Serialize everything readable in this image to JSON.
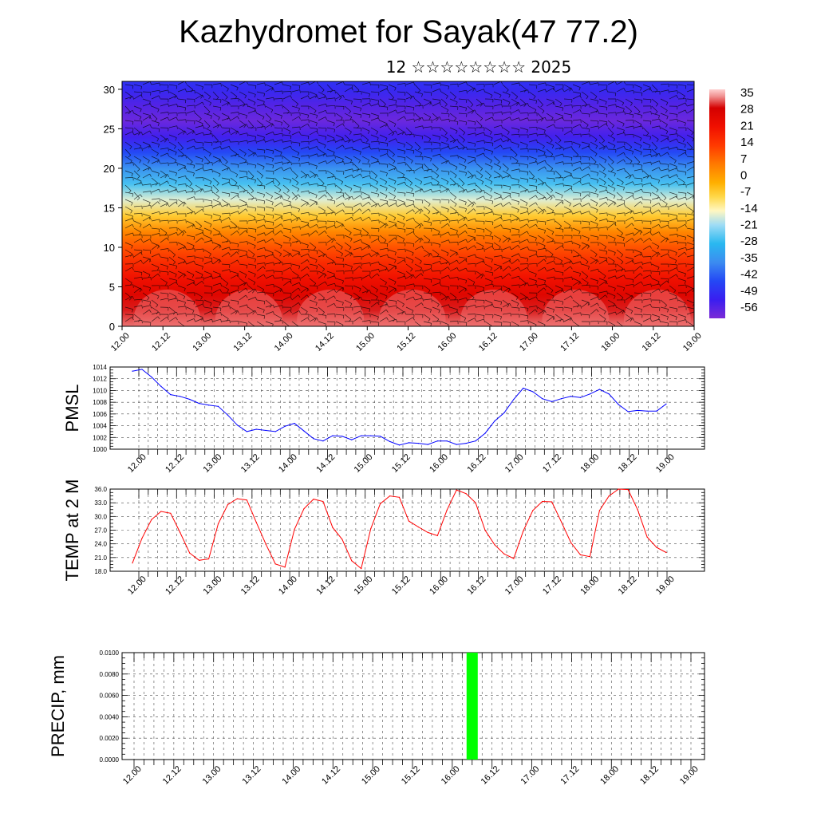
{
  "title": "Kazhydromet for Sayak(47 77.2)",
  "subtitle": "12 ☆☆☆☆☆☆☆☆ 2025",
  "colors": {
    "pmsl_line": "#0000ff",
    "temp_line": "#ff0000",
    "precip_bar": "#00ff00",
    "grid": "#000000"
  },
  "chart_data": [
    {
      "type": "heatmap",
      "name": "upper-air-temperature",
      "x_tick_labels": [
        "12.00",
        "12.12",
        "13.00",
        "13.12",
        "14.00",
        "14.12",
        "15.00",
        "15.12",
        "16.00",
        "16.12",
        "17.00",
        "17.12",
        "18.00",
        "18.12",
        "19.00"
      ],
      "y_tick_labels": [
        "0",
        "5",
        "10",
        "15",
        "20",
        "25",
        "30"
      ],
      "ylim": [
        0,
        31
      ],
      "colorbar_labels": [
        "35",
        "28",
        "21",
        "14",
        "7",
        "0",
        "-7",
        "-14",
        "-21",
        "-28",
        "-35",
        "-42",
        "-49",
        "-56"
      ],
      "colorbar_range": [
        -60,
        38
      ],
      "level_km": [
        0,
        2,
        4,
        6,
        8,
        10,
        12,
        14,
        16,
        18,
        20,
        22,
        24,
        26,
        28,
        30,
        31
      ],
      "temperature_c": [
        34,
        31,
        27,
        22,
        17,
        11,
        4,
        -6,
        -16,
        -26,
        -35,
        -44,
        -53,
        -58,
        -55,
        -50,
        -48
      ],
      "wind_barbs": true
    },
    {
      "type": "line",
      "name": "pmsl",
      "ylabel": "PMSL",
      "ylim": [
        1000,
        1014
      ],
      "y_tick_labels": [
        "1000",
        "1002",
        "1004",
        "1006",
        "1008",
        "1010",
        "1012",
        "1014"
      ],
      "x_tick_labels": [
        "12.00",
        "12.12",
        "13.00",
        "13.12",
        "14.00",
        "14.12",
        "15.00",
        "15.12",
        "16.00",
        "16.12",
        "17.00",
        "17.12",
        "18.00",
        "18.12",
        "19.00"
      ],
      "values": [
        1013.3,
        1013.6,
        1012.3,
        1010.7,
        1009.3,
        1009.0,
        1008.5,
        1007.8,
        1007.5,
        1007.3,
        1005.8,
        1004.1,
        1003.0,
        1003.4,
        1003.2,
        1003.0,
        1003.9,
        1004.4,
        1003.1,
        1001.8,
        1001.4,
        1002.3,
        1002.2,
        1001.6,
        1002.3,
        1002.3,
        1002.2,
        1001.3,
        1000.7,
        1001.1,
        1001.0,
        1000.8,
        1001.4,
        1001.4,
        1000.8,
        1001.0,
        1001.4,
        1002.7,
        1004.8,
        1006.2,
        1008.5,
        1010.4,
        1009.8,
        1008.6,
        1008.1,
        1008.6,
        1009.0,
        1008.8,
        1009.4,
        1010.2,
        1009.4,
        1007.6,
        1006.4,
        1006.6,
        1006.5,
        1006.5,
        1007.7
      ]
    },
    {
      "type": "line",
      "name": "temperature-2m",
      "ylabel": "TEMP at 2 M",
      "ylim": [
        18,
        36
      ],
      "y_tick_labels": [
        "18.0",
        "21.0",
        "24.0",
        "27.0",
        "30.0",
        "33.0",
        "36.0"
      ],
      "x_tick_labels": [
        "12.00",
        "12.12",
        "13.00",
        "13.12",
        "14.00",
        "14.12",
        "15.00",
        "15.12",
        "16.00",
        "16.12",
        "17.00",
        "17.12",
        "18.00",
        "18.12",
        "19.00"
      ],
      "values": [
        19.8,
        25.2,
        29.3,
        31.1,
        30.7,
        26.5,
        22.0,
        20.4,
        20.7,
        28.4,
        32.6,
        33.9,
        33.6,
        28.7,
        23.9,
        19.6,
        18.9,
        27.2,
        31.7,
        33.8,
        33.3,
        27.6,
        25.0,
        20.3,
        18.6,
        27.3,
        32.8,
        34.5,
        34.2,
        29.0,
        27.7,
        26.5,
        25.8,
        31.4,
        35.8,
        35.0,
        33.0,
        27.0,
        23.8,
        21.8,
        20.8,
        26.8,
        31.3,
        33.3,
        33.2,
        28.8,
        24.3,
        21.6,
        21.2,
        31.3,
        34.5,
        36.0,
        35.9,
        31.5,
        25.5,
        23.2,
        22.1
      ]
    },
    {
      "type": "bar",
      "name": "precipitation",
      "ylabel": "PRECIP, mm",
      "ylim": [
        0,
        0.01
      ],
      "y_tick_labels": [
        "0.0000",
        "0.0020",
        "0.0040",
        "0.0060",
        "0.0080",
        "0.0100"
      ],
      "x_tick_labels": [
        "12.00",
        "12.12",
        "13.00",
        "13.12",
        "14.00",
        "14.12",
        "15.00",
        "15.12",
        "16.00",
        "16.12",
        "17.00",
        "17.12",
        "18.00",
        "18.12",
        "19.00"
      ],
      "bars": [
        {
          "x_index": 34,
          "value": 0.01
        }
      ]
    }
  ]
}
